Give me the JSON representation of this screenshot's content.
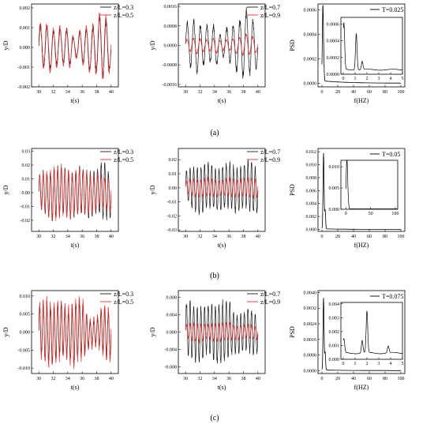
{
  "figure": {
    "panel_labels": [
      "(a)",
      "(b)",
      "(c)"
    ]
  },
  "colors": {
    "series_a": "#1a1a1a",
    "series_b": "#e03030",
    "axis": "#000000"
  },
  "chart_data": [
    {
      "id": "a1",
      "type": "line",
      "xlabel": "t(s)",
      "ylabel": "y/D",
      "xlim": [
        29,
        41
      ],
      "ylim": [
        -0.002,
        0.0022
      ],
      "xticks": [
        "30",
        "32",
        "34",
        "36",
        "38",
        "40"
      ],
      "xtick_values": [
        30,
        32,
        34,
        36,
        38,
        40
      ],
      "yticks": [
        "-0.002",
        "-0.001",
        "0.000",
        "0.001",
        "0.002"
      ],
      "ytick_values": [
        -0.002,
        -0.001,
        0,
        0.001,
        0.002
      ],
      "legend": "top-right",
      "series": [
        {
          "name": "z/L=0.3",
          "color": "#1a1a1a",
          "freq": 1.1,
          "amp": [
            0.0009,
            0.0011,
            0.0009,
            0.0008,
            0.0009,
            0.0004,
            0.0008,
            0.001,
            0.0012,
            0.0016,
            0.0008
          ]
        },
        {
          "name": "z/L=0.5",
          "color": "#e03030",
          "freq": 1.1,
          "amp": [
            0.001,
            0.0012,
            0.001,
            0.0009,
            0.001,
            0.0005,
            0.0009,
            0.0011,
            0.0013,
            0.0017,
            0.0009
          ]
        }
      ]
    },
    {
      "id": "a2",
      "type": "line",
      "xlabel": "t(s)",
      "ylabel": "y/D",
      "xlim": [
        29,
        41
      ],
      "ylim": [
        -0.0017,
        0.0017
      ],
      "xticks": [
        "30",
        "32",
        "34",
        "36",
        "38",
        "40"
      ],
      "xtick_values": [
        30,
        32,
        34,
        36,
        38,
        40
      ],
      "yticks": [
        "-0.0016",
        "-0.0008",
        "0.0000",
        "0.0008",
        "0.0016"
      ],
      "ytick_values": [
        -0.0016,
        -0.0008,
        0,
        0.0008,
        0.0016
      ],
      "legend": "top-right",
      "series": [
        {
          "name": "z/L=0.7",
          "color": "#1a1a1a",
          "freq": 1.1,
          "amp": [
            0.0008,
            0.001,
            0.0009,
            0.0007,
            0.0008,
            0.0004,
            0.0007,
            0.0009,
            0.0013,
            0.0012,
            0.0007
          ]
        },
        {
          "name": "z/L=0.9",
          "color": "#e03030",
          "freq": 1.1,
          "amp": [
            0.0002,
            0.0003,
            0.0003,
            0.0002,
            0.0003,
            0.0002,
            0.0002,
            0.0003,
            0.0004,
            0.0004,
            0.0002
          ]
        }
      ]
    },
    {
      "id": "a3",
      "type": "line",
      "xlabel": "f(HZ)",
      "ylabel": "PSD",
      "xlim": [
        -5,
        105
      ],
      "ylim": [
        -3e-05,
        0.00065
      ],
      "xticks": [
        "0",
        "20",
        "40",
        "60",
        "80",
        "100"
      ],
      "xtick_values": [
        0,
        20,
        40,
        60,
        80,
        100
      ],
      "yticks": [
        "0.0000",
        "0.0002",
        "0.0004",
        "0.0006"
      ],
      "ytick_values": [
        0,
        0.0002,
        0.0004,
        0.0006
      ],
      "legend": "top-right",
      "series": [
        {
          "name": "T=0.025",
          "color": "#000000",
          "peak_x": 1.1,
          "peak_y": 0.0006,
          "floor": 2e-05
        }
      ],
      "inset": {
        "xlim": [
          -0.2,
          5
        ],
        "ylim": [
          0,
          0.00068
        ],
        "xticks": [
          "0",
          "1",
          "2",
          "3",
          "4",
          "5"
        ],
        "xtick_values": [
          0,
          1,
          2,
          3,
          4,
          5
        ],
        "yticks": [
          "0.0000",
          "0.0002",
          "0.0004",
          "0.0006"
        ],
        "ytick_values": [
          0,
          0.0002,
          0.0004,
          0.0006
        ],
        "peaks": [
          [
            0.05,
            0.00062
          ],
          [
            1.1,
            0.0005
          ],
          [
            1.6,
            0.00016
          ]
        ],
        "floor": 6e-05
      }
    },
    {
      "id": "b1",
      "type": "line",
      "xlabel": "t(s)",
      "ylabel": "y/D",
      "xlim": [
        29,
        41
      ],
      "ylim": [
        -0.028,
        0.032
      ],
      "xticks": [
        "30",
        "32",
        "34",
        "36",
        "38",
        "40"
      ],
      "xtick_values": [
        30,
        32,
        34,
        36,
        38,
        40
      ],
      "yticks": [
        "-0.02",
        "-0.01",
        "0.00",
        "0.01",
        "0.02",
        "0.03"
      ],
      "ytick_values": [
        -0.02,
        -0.01,
        0,
        0.01,
        0.02,
        0.03
      ],
      "legend": "top-right",
      "series": [
        {
          "name": "z/L=0.3",
          "color": "#1a1a1a",
          "freq": 2.0,
          "amp": [
            0.012,
            0.015,
            0.017,
            0.017,
            0.016,
            0.015,
            0.016,
            0.016,
            0.014,
            0.02,
            0.014
          ]
        },
        {
          "name": "z/L=0.5",
          "color": "#e03030",
          "freq": 2.0,
          "amp": [
            0.011,
            0.014,
            0.018,
            0.018,
            0.016,
            0.015,
            0.015,
            0.014,
            0.012,
            0.01,
            0.012
          ]
        }
      ]
    },
    {
      "id": "b2",
      "type": "line",
      "xlabel": "t(s)",
      "ylabel": "y/D",
      "xlim": [
        29,
        41
      ],
      "ylim": [
        -0.031,
        0.028
      ],
      "xticks": [
        "30",
        "32",
        "34",
        "36",
        "38",
        "40"
      ],
      "xtick_values": [
        30,
        32,
        34,
        36,
        38,
        40
      ],
      "yticks": [
        "-0.03",
        "-0.02",
        "-0.01",
        "0.00",
        "0.01",
        "0.02"
      ],
      "ytick_values": [
        -0.03,
        -0.02,
        -0.01,
        0,
        0.01,
        0.02
      ],
      "legend": "top-right",
      "series": [
        {
          "name": "z/L=0.7",
          "color": "#1a1a1a",
          "freq": 2.0,
          "amp": [
            0.01,
            0.014,
            0.016,
            0.015,
            0.015,
            0.014,
            0.016,
            0.015,
            0.014,
            0.018,
            0.015
          ]
        },
        {
          "name": "z/L=0.9",
          "color": "#e03030",
          "freq": 2.0,
          "amp": [
            0.004,
            0.006,
            0.006,
            0.006,
            0.006,
            0.005,
            0.006,
            0.006,
            0.006,
            0.007,
            0.006
          ]
        }
      ]
    },
    {
      "id": "b3",
      "type": "line",
      "xlabel": "f(HZ)",
      "ylabel": "PSD",
      "xlim": [
        -5,
        105
      ],
      "ylim": [
        -0.0003,
        0.0125
      ],
      "xticks": [
        "0",
        "20",
        "40",
        "60",
        "80",
        "100"
      ],
      "xtick_values": [
        0,
        20,
        40,
        60,
        80,
        100
      ],
      "yticks": [
        "0.000",
        "0.002",
        "0.004",
        "0.006",
        "0.008",
        "0.010",
        "0.012"
      ],
      "ytick_values": [
        0,
        0.002,
        0.004,
        0.006,
        0.008,
        0.01,
        0.012
      ],
      "legend": "top-right",
      "series": [
        {
          "name": "T=0.05",
          "color": "#000000",
          "peak_x": 2.0,
          "peak_y": 0.0117,
          "floor": 0.0001
        }
      ],
      "inset": {
        "xlim": [
          -10,
          105
        ],
        "ylim": [
          0,
          0.0115
        ],
        "xticks": [
          "0",
          "50",
          "100"
        ],
        "xtick_values": [
          0,
          50,
          100
        ],
        "yticks": [
          "0.000",
          "0.005",
          "0.010"
        ],
        "ytick_values": [
          0,
          0.005,
          0.01
        ],
        "peaks": [
          [
            2,
            0.0112
          ],
          [
            4,
            0.002
          ]
        ],
        "floor": 0.0001
      }
    },
    {
      "id": "c1",
      "type": "line",
      "xlabel": "t(s)",
      "ylabel": "y/D",
      "xlim": [
        29,
        41
      ],
      "ylim": [
        -0.0115,
        0.0115
      ],
      "xticks": [
        "30",
        "32",
        "34",
        "36",
        "38",
        "40"
      ],
      "xtick_values": [
        30,
        32,
        34,
        36,
        38,
        40
      ],
      "yticks": [
        "-0.010",
        "-0.005",
        "0.000",
        "0.005",
        "0.010"
      ],
      "ytick_values": [
        -0.01,
        -0.005,
        0,
        0.005,
        0.01
      ],
      "legend": "top-right",
      "series": [
        {
          "name": "z/L=0.3",
          "color": "#1a1a1a",
          "freq": 2.0,
          "amp": [
            0.006,
            0.008,
            0.007,
            0.007,
            0.006,
            0.008,
            0.007,
            0.003,
            0.003,
            0.006,
            0.006
          ]
        },
        {
          "name": "z/L=0.5",
          "color": "#e03030",
          "freq": 2.0,
          "amp": [
            0.007,
            0.009,
            0.008,
            0.008,
            0.007,
            0.009,
            0.008,
            0.004,
            0.004,
            0.007,
            0.007
          ]
        }
      ]
    },
    {
      "id": "c2",
      "type": "line",
      "xlabel": "t(s)",
      "ylabel": "y/D",
      "xlim": [
        29,
        41
      ],
      "ylim": [
        -0.0095,
        0.0095
      ],
      "xticks": [
        "30",
        "32",
        "34",
        "36",
        "38",
        "40"
      ],
      "xtick_values": [
        30,
        32,
        34,
        36,
        38,
        40
      ],
      "yticks": [
        "-0.008",
        "-0.004",
        "0.000",
        "0.004",
        "0.008"
      ],
      "ytick_values": [
        -0.008,
        -0.004,
        0,
        0.004,
        0.008
      ],
      "legend": "top-right",
      "series": [
        {
          "name": "z/L=0.7",
          "color": "#1a1a1a",
          "freq": 2.0,
          "amp": [
            0.006,
            0.006,
            0.006,
            0.005,
            0.006,
            0.007,
            0.006,
            0.004,
            0.004,
            0.005,
            0.004
          ]
        },
        {
          "name": "z/L=0.9",
          "color": "#e03030",
          "freq": 2.0,
          "amp": [
            0.0015,
            0.002,
            0.002,
            0.0015,
            0.002,
            0.002,
            0.002,
            0.0015,
            0.0015,
            0.0015,
            0.0015
          ]
        }
      ]
    },
    {
      "id": "c3",
      "type": "line",
      "xlabel": "f(HZ)",
      "ylabel": "PSD",
      "xlim": [
        -5,
        105
      ],
      "ylim": [
        -0.00015,
        0.0041
      ],
      "xticks": [
        "0",
        "20",
        "40",
        "60",
        "80",
        "100"
      ],
      "xtick_values": [
        0,
        20,
        40,
        60,
        80,
        100
      ],
      "yticks": [
        "0.0000",
        "0.0008",
        "0.0016",
        "0.0024",
        "0.0032",
        "0.0040"
      ],
      "ytick_values": [
        0,
        0.0008,
        0.0016,
        0.0024,
        0.0032,
        0.004
      ],
      "legend": "top-right",
      "series": [
        {
          "name": "T=0.075",
          "color": "#000000",
          "peak_x": 2.0,
          "peak_y": 0.0037,
          "floor": 3e-05
        }
      ],
      "inset": {
        "xlim": [
          -0.2,
          5
        ],
        "ylim": [
          0,
          0.0041
        ],
        "xticks": [
          "0",
          "1",
          "2",
          "3",
          "4",
          "5"
        ],
        "xtick_values": [
          0,
          1,
          2,
          3,
          4,
          5
        ],
        "yticks": [
          "0.000",
          "0.001",
          "0.002",
          "0.003",
          "0.004"
        ],
        "ytick_values": [
          0,
          0.001,
          0.002,
          0.003,
          0.004
        ],
        "peaks": [
          [
            0.05,
            0.0015
          ],
          [
            1.6,
            0.0014
          ],
          [
            2.0,
            0.0035
          ],
          [
            3.8,
            0.001
          ]
        ],
        "floor": 0.0005
      }
    }
  ]
}
